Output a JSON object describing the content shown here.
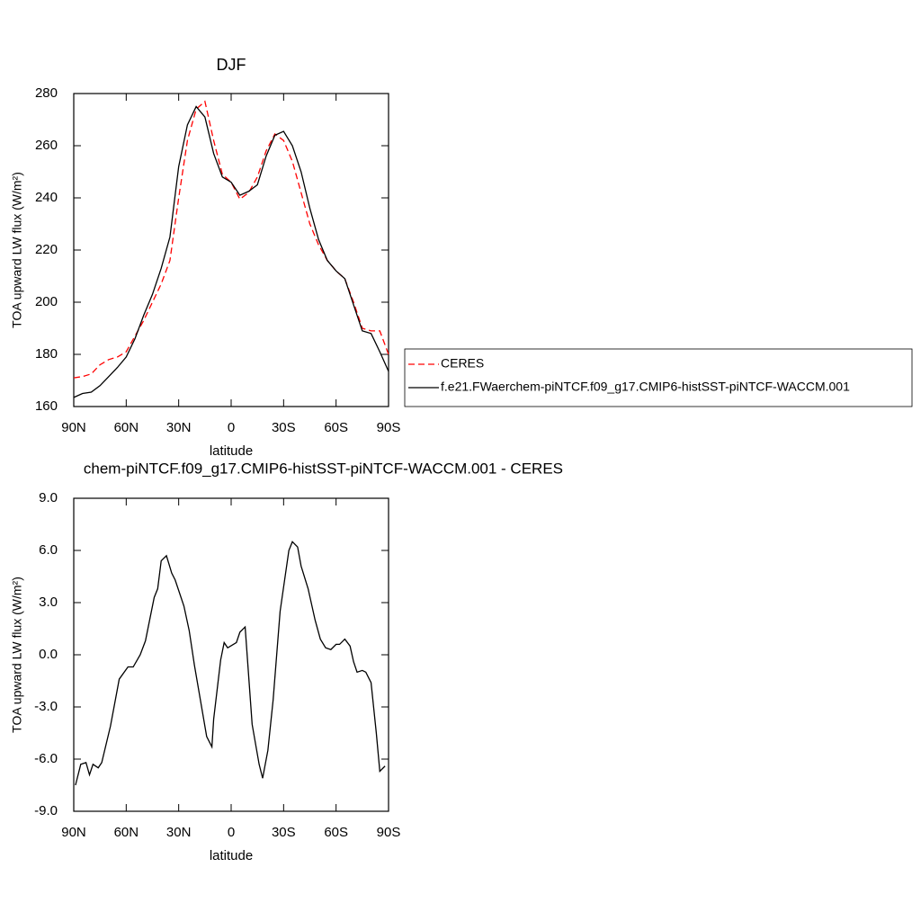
{
  "chart_data": [
    {
      "type": "line",
      "title": "DJF",
      "x_label": "latitude",
      "y_label": "TOA upward LW flux (W/m²)",
      "x": [
        90,
        85,
        80,
        75,
        70,
        65,
        60,
        55,
        50,
        45,
        40,
        35,
        30,
        25,
        20,
        15,
        10,
        5,
        0,
        -5,
        -10,
        -15,
        -20,
        -25,
        -30,
        -35,
        -40,
        -45,
        -50,
        -55,
        -60,
        -65,
        -70,
        -75,
        -80,
        -85,
        -90
      ],
      "series": [
        {
          "name": "CERES",
          "color": "#ff0000",
          "linestyle": "dashed",
          "values": [
            171,
            171.5,
            172.5,
            176,
            178,
            179,
            181,
            187,
            193,
            200,
            207,
            216,
            240,
            262,
            274,
            277,
            262,
            249,
            246,
            239.5,
            242,
            248,
            258,
            264.5,
            262,
            254,
            242,
            230,
            222,
            216,
            212,
            209,
            200,
            190,
            189,
            189,
            180
          ]
        },
        {
          "name": "f.e21.FWaerchem-piNTCF.f09_g17.CMIP6-histSST-piNTCF-WACCM.001",
          "color": "#000000",
          "linestyle": "solid",
          "values": [
            163.5,
            165,
            165.5,
            168,
            171.5,
            175,
            179,
            186,
            195,
            203,
            213,
            225,
            252,
            268,
            275,
            271,
            257,
            248,
            246,
            241,
            242.5,
            245,
            256,
            264,
            265.5,
            260,
            250,
            236,
            224,
            216,
            212,
            209,
            199,
            189,
            188,
            181,
            173.5
          ]
        }
      ],
      "xlim": [
        90,
        -90
      ],
      "xticks": [
        {
          "value": 90,
          "label": "90N"
        },
        {
          "value": 60,
          "label": "60N"
        },
        {
          "value": 30,
          "label": "30N"
        },
        0,
        {
          "value": -30,
          "label": "30S"
        },
        {
          "value": -60,
          "label": "60S"
        },
        {
          "value": -90,
          "label": "90S"
        }
      ],
      "ylim": [
        160,
        280
      ],
      "yticks": [
        160,
        180,
        200,
        220,
        240,
        260,
        280
      ],
      "legend": "right"
    },
    {
      "type": "line",
      "title": "chem-piNTCF.f09_g17.CMIP6-histSST-piNTCF-WACCM.001 - CERES",
      "x_label": "latitude",
      "y_label": "TOA upward LW flux (W/m²)",
      "x": [
        89,
        86,
        83,
        81,
        79,
        76,
        74,
        69,
        64,
        59,
        56,
        52,
        49,
        44,
        42,
        40,
        37,
        34,
        32,
        27,
        24,
        21,
        14,
        11,
        10,
        6,
        4,
        2,
        -3,
        -5,
        -8,
        -12,
        -16,
        -18,
        -21,
        -24,
        -28,
        -31,
        -33,
        -35,
        -38,
        -40,
        -44,
        -48,
        -51,
        -54,
        -57,
        -60,
        -62,
        -65,
        -68,
        -70,
        -72,
        -75,
        -77,
        -80,
        -83,
        -85,
        -88
      ],
      "series": [
        {
          "color": "#000000",
          "linestyle": "solid",
          "values": [
            -7.5,
            -6.3,
            -6.2,
            -6.9,
            -6.3,
            -6.5,
            -6.2,
            -4.1,
            -1.4,
            -0.7,
            -0.7,
            0,
            0.8,
            3.3,
            3.8,
            5.4,
            5.7,
            4.7,
            4.3,
            2.8,
            1.4,
            -0.6,
            -4.7,
            -5.3,
            -3.7,
            -0.3,
            0.7,
            0.4,
            0.7,
            1.3,
            1.6,
            -4.0,
            -6.3,
            -7.1,
            -5.5,
            -2.6,
            2.5,
            4.6,
            6.0,
            6.5,
            6.2,
            5.1,
            3.8,
            2.0,
            0.9,
            0.4,
            0.3,
            0.6,
            0.6,
            0.9,
            0.5,
            -0.4,
            -1.0,
            -0.9,
            -1.0,
            -1.6,
            -4.5,
            -6.7,
            -6.4
          ]
        }
      ],
      "xlim": [
        90,
        -90
      ],
      "xticks": [
        {
          "value": 90,
          "label": "90N"
        },
        {
          "value": 60,
          "label": "60N"
        },
        {
          "value": 30,
          "label": "30N"
        },
        0,
        {
          "value": -30,
          "label": "30S"
        },
        {
          "value": -60,
          "label": "60S"
        },
        {
          "value": -90,
          "label": "90S"
        }
      ],
      "ylim": [
        -9,
        9
      ],
      "yticks": [
        {
          "value": -9,
          "label": "-9.0"
        },
        {
          "value": -6,
          "label": "-6.0"
        },
        {
          "value": -3,
          "label": "-3.0"
        },
        {
          "value": 0,
          "label": "0.0"
        },
        {
          "value": 3,
          "label": "3.0"
        },
        {
          "value": 6,
          "label": "6.0"
        },
        {
          "value": 9,
          "label": "9.0"
        }
      ]
    }
  ]
}
